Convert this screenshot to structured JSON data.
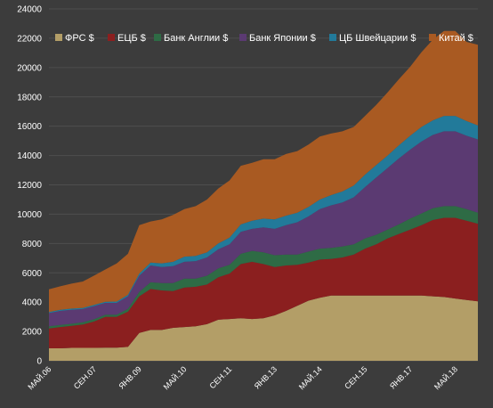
{
  "chart_data": {
    "type": "area",
    "stacked": true,
    "title": "",
    "xlabel": "",
    "ylabel": "",
    "ylim": [
      0,
      24000
    ],
    "yticks": [
      0,
      2000,
      4000,
      6000,
      8000,
      10000,
      12000,
      14000,
      16000,
      18000,
      20000,
      22000,
      24000
    ],
    "grid": true,
    "legend_position": "top",
    "x": [
      "МАЙ.06",
      "СЕН.06",
      "ЯНВ.07",
      "МАЙ.07",
      "СЕН.07",
      "ЯНВ.08",
      "МАЙ.08",
      "СЕН.08",
      "ЯНВ.09",
      "МАЙ.09",
      "СЕН.09",
      "ЯНВ.10",
      "МАЙ.10",
      "СЕН.10",
      "ЯНВ.11",
      "МАЙ.11",
      "СЕН.11",
      "ЯНВ.12",
      "МАЙ.12",
      "СЕН.12",
      "ЯНВ.13",
      "МАЙ.13",
      "СЕН.13",
      "ЯНВ.14",
      "МАЙ.14",
      "СЕН.14",
      "ЯНВ.15",
      "МАЙ.15",
      "СЕН.15",
      "ЯНВ.16",
      "МАЙ.16",
      "СЕН.16",
      "ЯНВ.17",
      "МАЙ.17",
      "СЕН.17",
      "ЯНВ.18",
      "МАЙ.18",
      "СЕН.18",
      "НОЯ.18"
    ],
    "x_tick_labels": [
      "МАЙ.06",
      "СЕН.07",
      "ЯНВ.09",
      "МАЙ.10",
      "СЕН.11",
      "ЯНВ.13",
      "МАЙ.14",
      "СЕН.15",
      "ЯНВ.17",
      "МАЙ.18"
    ],
    "series": [
      {
        "name": "ФРС  $",
        "color": "#b39e67",
        "values": [
          850,
          850,
          880,
          880,
          880,
          900,
          900,
          950,
          1900,
          2100,
          2100,
          2250,
          2300,
          2350,
          2500,
          2800,
          2850,
          2900,
          2850,
          2900,
          3100,
          3400,
          3750,
          4100,
          4300,
          4450,
          4450,
          4450,
          4450,
          4450,
          4450,
          4450,
          4450,
          4450,
          4400,
          4350,
          4250,
          4150,
          4050
        ]
      },
      {
        "name": "ЕЦБ $",
        "color": "#8b1f1f",
        "values": [
          1350,
          1450,
          1500,
          1600,
          1800,
          2100,
          2100,
          2400,
          2500,
          2800,
          2700,
          2500,
          2700,
          2700,
          2700,
          2900,
          3100,
          3700,
          3900,
          3700,
          3300,
          3100,
          2800,
          2600,
          2600,
          2500,
          2600,
          2800,
          3200,
          3500,
          3900,
          4200,
          4500,
          4800,
          5200,
          5400,
          5500,
          5400,
          5300
        ]
      },
      {
        "name": "Банк Англии $",
        "color": "#2e6b45",
        "values": [
          150,
          150,
          150,
          150,
          150,
          150,
          150,
          200,
          300,
          450,
          500,
          550,
          600,
          550,
          600,
          600,
          600,
          700,
          750,
          800,
          800,
          750,
          700,
          750,
          750,
          750,
          750,
          700,
          700,
          650,
          600,
          650,
          750,
          800,
          800,
          800,
          800,
          800,
          750
        ]
      },
      {
        "name": "Банк Японии $",
        "color": "#5b3a72",
        "values": [
          900,
          950,
          950,
          900,
          900,
          800,
          800,
          850,
          1100,
          1150,
          1100,
          1150,
          1150,
          1200,
          1250,
          1300,
          1400,
          1500,
          1500,
          1700,
          1800,
          2000,
          2200,
          2400,
          2700,
          2900,
          3000,
          3200,
          3500,
          3900,
          4200,
          4500,
          4700,
          4900,
          5000,
          5100,
          5100,
          5000,
          5000
        ]
      },
      {
        "name": "ЦБ Швейцарии $",
        "color": "#227a9a",
        "values": [
          80,
          80,
          80,
          80,
          80,
          80,
          90,
          100,
          150,
          200,
          250,
          300,
          350,
          350,
          350,
          400,
          450,
          500,
          550,
          600,
          650,
          650,
          650,
          650,
          650,
          700,
          750,
          800,
          850,
          850,
          850,
          900,
          950,
          1000,
          1000,
          1050,
          1050,
          1000,
          950
        ]
      },
      {
        "name": "Китай $",
        "color": "#a95a22",
        "values": [
          1550,
          1600,
          1700,
          1800,
          2000,
          2200,
          2600,
          2800,
          3300,
          2800,
          3000,
          3200,
          3250,
          3400,
          3600,
          3750,
          3900,
          4000,
          3950,
          4050,
          4100,
          4200,
          4200,
          4250,
          4300,
          4200,
          4100,
          4000,
          4000,
          4100,
          4300,
          4500,
          4700,
          5100,
          5500,
          5800,
          5800,
          5400,
          5500
        ]
      }
    ]
  }
}
